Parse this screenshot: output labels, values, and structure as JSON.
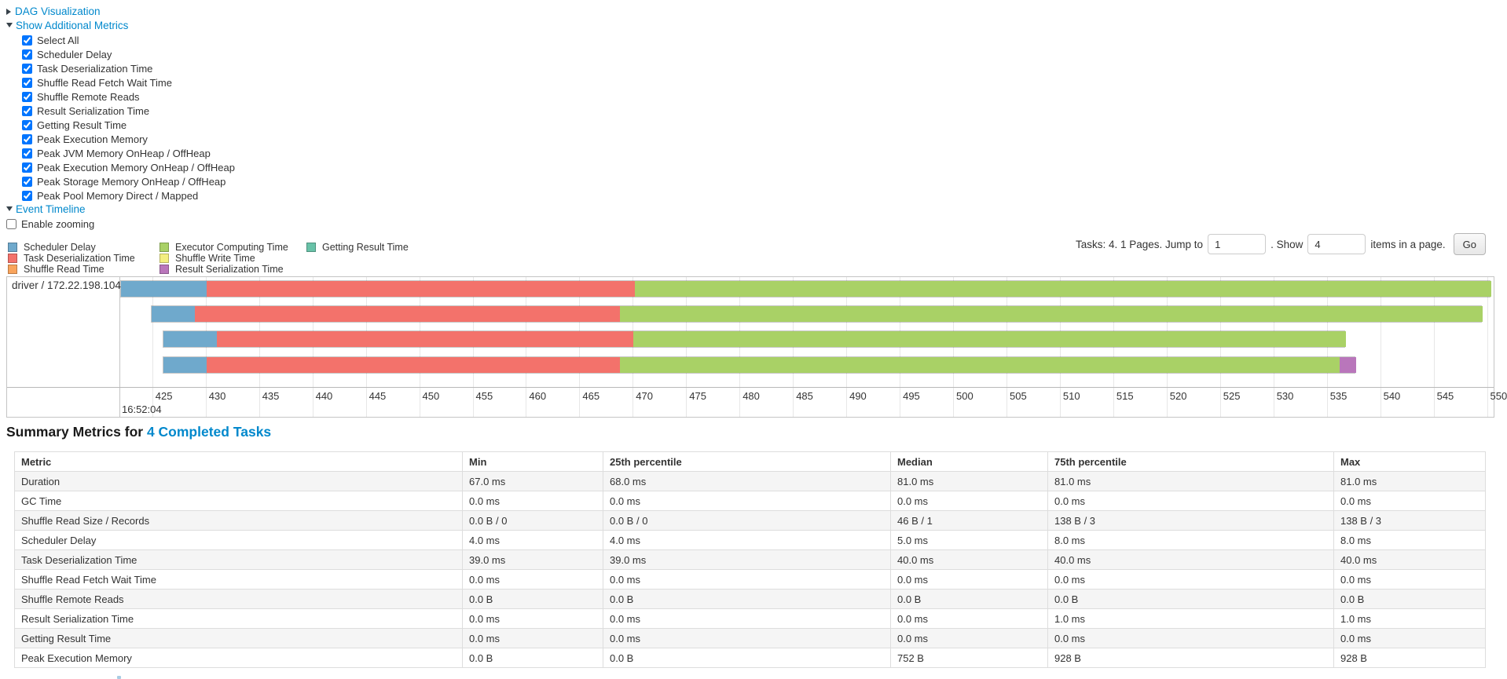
{
  "colors": {
    "scheduler_delay": "#6FA9CC",
    "task_deserialization": "#F3726B",
    "shuffle_read": "#F9A45C",
    "executor_computing": "#A9D166",
    "shuffle_write": "#F3EE80",
    "result_serialization": "#B976BB",
    "getting_result": "#68C2A8",
    "link": "#0088cc"
  },
  "sections": {
    "dag": {
      "label": "DAG Visualization"
    },
    "additional_metrics": {
      "label": "Show Additional Metrics",
      "options": [
        {
          "label": "Select All",
          "checked": true
        },
        {
          "label": "Scheduler Delay",
          "checked": true
        },
        {
          "label": "Task Deserialization Time",
          "checked": true
        },
        {
          "label": "Shuffle Read Fetch Wait Time",
          "checked": true
        },
        {
          "label": "Shuffle Remote Reads",
          "checked": true
        },
        {
          "label": "Result Serialization Time",
          "checked": true
        },
        {
          "label": "Getting Result Time",
          "checked": true
        },
        {
          "label": "Peak Execution Memory",
          "checked": true
        },
        {
          "label": "Peak JVM Memory OnHeap / OffHeap",
          "checked": true
        },
        {
          "label": "Peak Execution Memory OnHeap / OffHeap",
          "checked": true
        },
        {
          "label": "Peak Storage Memory OnHeap / OffHeap",
          "checked": true
        },
        {
          "label": "Peak Pool Memory Direct / Mapped",
          "checked": true
        }
      ]
    },
    "event_timeline": {
      "label": "Event Timeline",
      "enable_zooming": {
        "label": "Enable zooming",
        "checked": false
      }
    }
  },
  "legend": [
    {
      "label": "Scheduler Delay",
      "color_key": "scheduler_delay"
    },
    {
      "label": "Task Deserialization Time",
      "color_key": "task_deserialization"
    },
    {
      "label": "Shuffle Read Time",
      "color_key": "shuffle_read"
    },
    {
      "label": "Executor Computing Time",
      "color_key": "executor_computing"
    },
    {
      "label": "Shuffle Write Time",
      "color_key": "shuffle_write"
    },
    {
      "label": "Result Serialization Time",
      "color_key": "result_serialization"
    },
    {
      "label": "Getting Result Time",
      "color_key": "getting_result"
    }
  ],
  "pagination": {
    "tasks_text": "Tasks: 4. 1 Pages. Jump to",
    "jump_value": "1",
    "show_text": ". Show",
    "show_value": "4",
    "items_text": "items in a page.",
    "go_label": "Go"
  },
  "chart_data": {
    "type": "timeline",
    "title": "Event Timeline",
    "group_label": "driver / 172.22.198.104",
    "x_axis": {
      "tick_start": 425,
      "tick_end": 550,
      "tick_step": 5,
      "base_time_label": "16:52:04"
    },
    "tasks": [
      {
        "segments": [
          {
            "key": "scheduler_delay",
            "start": 422.0,
            "end": 430.0
          },
          {
            "key": "task_deserialization",
            "start": 430.0,
            "end": 470.1
          },
          {
            "key": "executor_computing",
            "start": 470.1,
            "end": 550.3
          }
        ]
      },
      {
        "segments": [
          {
            "key": "scheduler_delay",
            "start": 424.9,
            "end": 428.9
          },
          {
            "key": "task_deserialization",
            "start": 428.9,
            "end": 468.7
          },
          {
            "key": "executor_computing",
            "start": 468.7,
            "end": 549.5
          }
        ]
      },
      {
        "segments": [
          {
            "key": "scheduler_delay",
            "start": 426.0,
            "end": 431.0
          },
          {
            "key": "task_deserialization",
            "start": 431.0,
            "end": 470.0
          },
          {
            "key": "executor_computing",
            "start": 470.0,
            "end": 536.7
          }
        ]
      },
      {
        "segments": [
          {
            "key": "scheduler_delay",
            "start": 426.0,
            "end": 430.0
          },
          {
            "key": "task_deserialization",
            "start": 430.0,
            "end": 468.7
          },
          {
            "key": "executor_computing",
            "start": 468.7,
            "end": 536.1
          },
          {
            "key": "result_serialization",
            "start": 536.1,
            "end": 537.7
          }
        ]
      }
    ]
  },
  "summary": {
    "title_prefix": "Summary Metrics for ",
    "title_link": "4 Completed Tasks",
    "table": {
      "headers": [
        "Metric",
        "Min",
        "25th percentile",
        "Median",
        "75th percentile",
        "Max"
      ],
      "rows": [
        [
          "Duration",
          "67.0 ms",
          "68.0 ms",
          "81.0 ms",
          "81.0 ms",
          "81.0 ms"
        ],
        [
          "GC Time",
          "0.0 ms",
          "0.0 ms",
          "0.0 ms",
          "0.0 ms",
          "0.0 ms"
        ],
        [
          "Shuffle Read Size / Records",
          "0.0 B / 0",
          "0.0 B / 0",
          "46 B / 1",
          "138 B / 3",
          "138 B / 3"
        ],
        [
          "Scheduler Delay",
          "4.0 ms",
          "4.0 ms",
          "5.0 ms",
          "8.0 ms",
          "8.0 ms"
        ],
        [
          "Task Deserialization Time",
          "39.0 ms",
          "39.0 ms",
          "40.0 ms",
          "40.0 ms",
          "40.0 ms"
        ],
        [
          "Shuffle Read Fetch Wait Time",
          "0.0 ms",
          "0.0 ms",
          "0.0 ms",
          "0.0 ms",
          "0.0 ms"
        ],
        [
          "Shuffle Remote Reads",
          "0.0 B",
          "0.0 B",
          "0.0 B",
          "0.0 B",
          "0.0 B"
        ],
        [
          "Result Serialization Time",
          "0.0 ms",
          "0.0 ms",
          "0.0 ms",
          "1.0 ms",
          "1.0 ms"
        ],
        [
          "Getting Result Time",
          "0.0 ms",
          "0.0 ms",
          "0.0 ms",
          "0.0 ms",
          "0.0 ms"
        ],
        [
          "Peak Execution Memory",
          "0.0 B",
          "0.0 B",
          "752 B",
          "928 B",
          "928 B"
        ]
      ]
    }
  }
}
